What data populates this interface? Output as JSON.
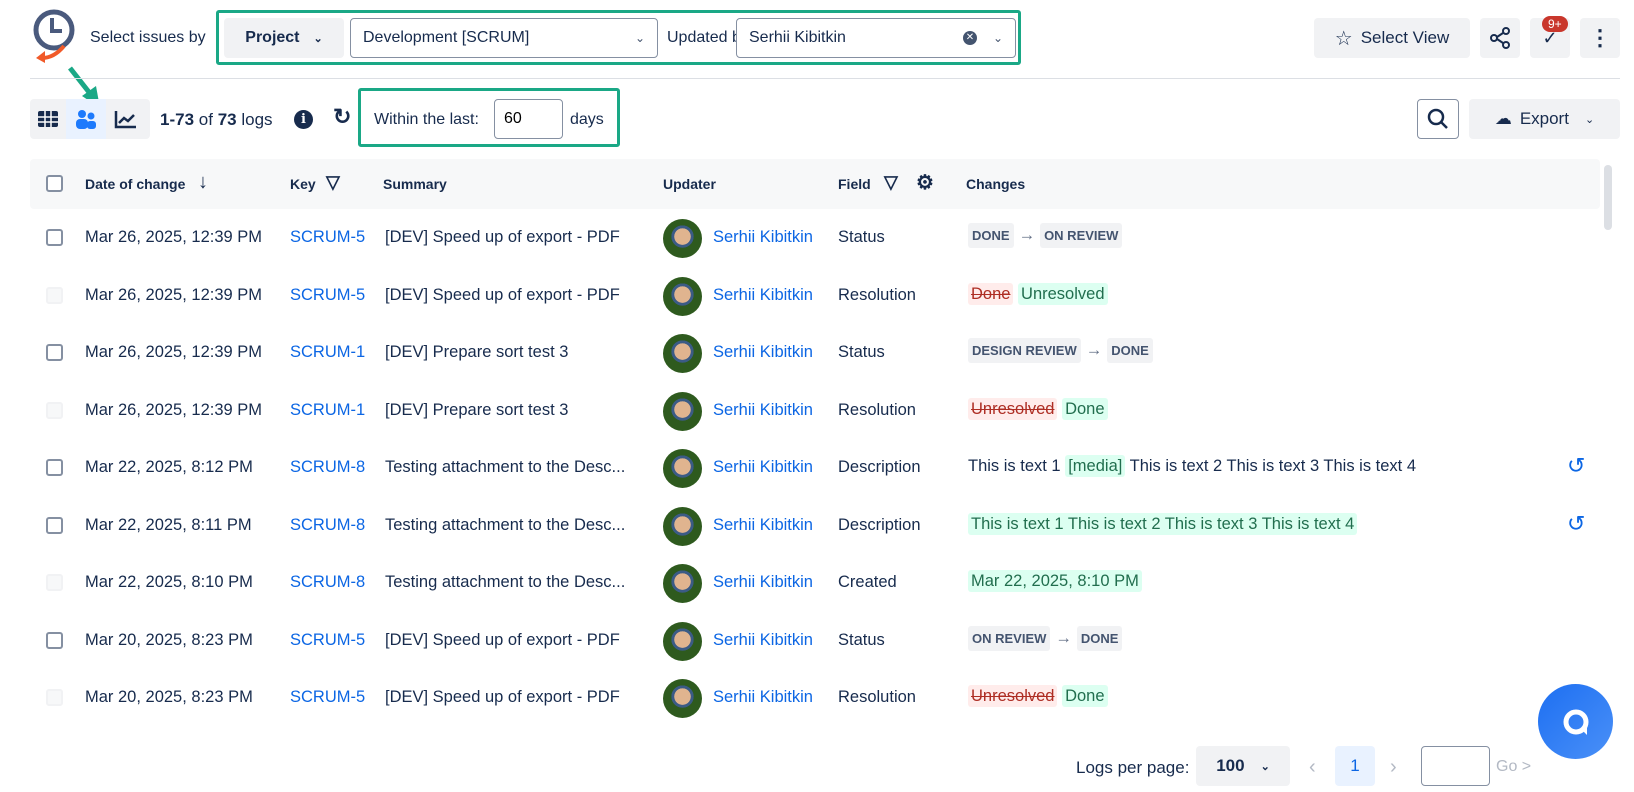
{
  "header": {
    "select_issues_by": "Select issues by",
    "project_label": "Project",
    "project_value": "Development [SCRUM]",
    "updated_by_label": "Updated by:",
    "updated_by_value": "Serhii Kibitkin",
    "select_view": "Select View",
    "notification_badge": "9+"
  },
  "toolbar": {
    "range_start": "1-73",
    "of": "of",
    "total": "73",
    "logs": "logs",
    "within_label": "Within the last:",
    "within_value": "60",
    "days": "days",
    "export": "Export"
  },
  "table": {
    "columns": [
      "Date of change",
      "Key",
      "Summary",
      "Updater",
      "Field",
      "Changes"
    ],
    "rows": [
      {
        "date": "Mar 26, 2025, 12:39 PM",
        "key": "SCRUM-5",
        "summary": "[DEV] Speed up of export - PDF",
        "updater": "Serhii Kibitkin",
        "field": "Status",
        "type": "status",
        "from": "DONE",
        "to": "ON REVIEW",
        "checkbox": true
      },
      {
        "date": "Mar 26, 2025, 12:39 PM",
        "key": "SCRUM-5",
        "summary": "[DEV] Speed up of export - PDF",
        "updater": "Serhii Kibitkin",
        "field": "Resolution",
        "type": "diff",
        "from": "Done",
        "to": "Unresolved",
        "checkbox": false
      },
      {
        "date": "Mar 26, 2025, 12:39 PM",
        "key": "SCRUM-1",
        "summary": "[DEV] Prepare sort test 3",
        "updater": "Serhii Kibitkin",
        "field": "Status",
        "type": "status",
        "from": "DESIGN REVIEW",
        "to": "DONE",
        "checkbox": true
      },
      {
        "date": "Mar 26, 2025, 12:39 PM",
        "key": "SCRUM-1",
        "summary": "[DEV] Prepare sort test 3",
        "updater": "Serhii Kibitkin",
        "field": "Resolution",
        "type": "diff",
        "from": "Unresolved",
        "to": "Done",
        "checkbox": false
      },
      {
        "date": "Mar 22, 2025, 8:12 PM",
        "key": "SCRUM-8",
        "summary": "Testing attachment to the Desc...",
        "updater": "Serhii Kibitkin",
        "field": "Description",
        "type": "text",
        "before": "This is text 1",
        "media": "[media]",
        "after": "This is text 2 This is text 3 This is text 4",
        "revert": true,
        "checkbox": true
      },
      {
        "date": "Mar 22, 2025, 8:11 PM",
        "key": "SCRUM-8",
        "summary": "Testing attachment to the Desc...",
        "updater": "Serhii Kibitkin",
        "field": "Description",
        "type": "added",
        "to": "This is text 1 This is text 2 This is text 3 This is text 4",
        "revert": true,
        "checkbox": true
      },
      {
        "date": "Mar 22, 2025, 8:10 PM",
        "key": "SCRUM-8",
        "summary": "Testing attachment to the Desc...",
        "updater": "Serhii Kibitkin",
        "field": "Created",
        "type": "added",
        "to": "Mar 22, 2025, 8:10 PM",
        "checkbox": false
      },
      {
        "date": "Mar 20, 2025, 8:23 PM",
        "key": "SCRUM-5",
        "summary": "[DEV] Speed up of export - PDF",
        "updater": "Serhii Kibitkin",
        "field": "Status",
        "type": "status",
        "from": "ON REVIEW",
        "to": "DONE",
        "checkbox": true
      },
      {
        "date": "Mar 20, 2025, 8:23 PM",
        "key": "SCRUM-5",
        "summary": "[DEV] Speed up of export - PDF",
        "updater": "Serhii Kibitkin",
        "field": "Resolution",
        "type": "diff",
        "from": "Unresolved",
        "to": "Done",
        "checkbox": false
      }
    ]
  },
  "pagination": {
    "per_page_label": "Logs per page:",
    "per_page_value": "100",
    "current_page": "1",
    "go": "Go >"
  },
  "colors": {
    "accent": "#0c66e4",
    "highlight_box": "#1aa886",
    "badge": "#c9372c",
    "fab": "#2f7cf6"
  }
}
